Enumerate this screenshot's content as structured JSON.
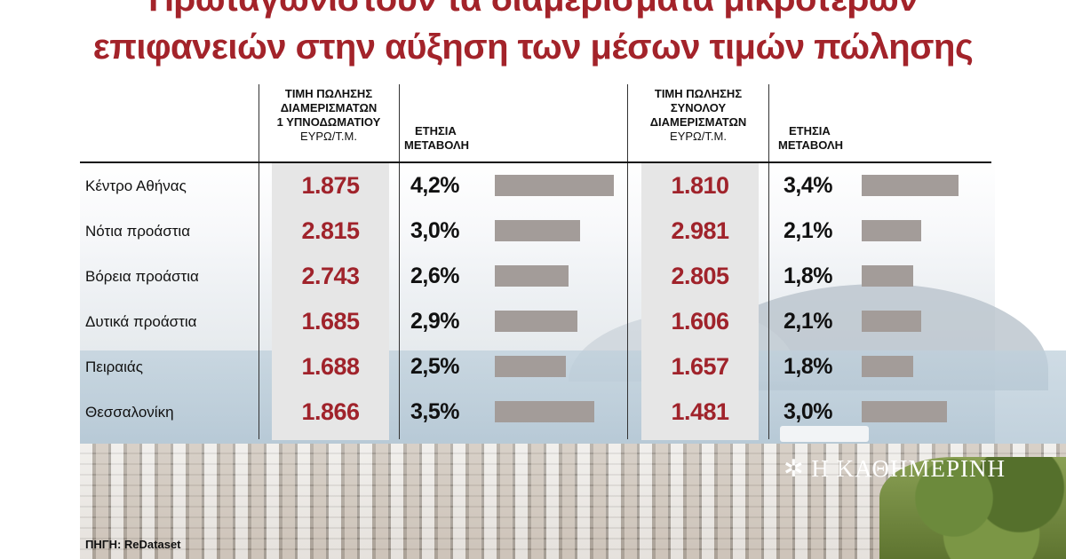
{
  "title": {
    "line1": "Πρωταγωνιστούν τα διαμερίσματα μικρότερων",
    "line2": "επιφανειών στην αύξηση των μέσων τιμών πώλησης"
  },
  "headers": {
    "col1": [
      "ΤΙΜΗ ΠΩΛΗΣΗΣ",
      "ΔΙΑΜΕΡΙΣΜΑΤΩΝ",
      "1 ΥΠΝΟΔΩΜΑΤΙΟΥ"
    ],
    "col1_unit": "ΕΥΡΩ/Τ.Μ.",
    "col2": [
      "ΕΤΗΣΙΑ",
      "ΜΕΤΑΒΟΛΗ"
    ],
    "col3": [
      "ΤΙΜΗ ΠΩΛΗΣΗΣ",
      "ΣΥΝΟΛΟΥ",
      "ΔΙΑΜΕΡΙΣΜΑΤΩΝ"
    ],
    "col3_unit": "ΕΥΡΩ/Τ.Μ.",
    "col4": [
      "ΕΤΗΣΙΑ",
      "ΜΕΤΑΒΟΛΗ"
    ]
  },
  "chart_data": {
    "type": "table",
    "rows": [
      "Κέντρο Αθήνας",
      "Νότια προάστια",
      "Βόρεια προάστια",
      "Δυτικά προάστια",
      "Πειραιάς",
      "Θεσσαλονίκη"
    ],
    "series": [
      {
        "name": "ΤΙΜΗ ΠΩΛΗΣΗΣ ΔΙΑΜΕΡΙΣΜΑΤΩΝ 1 ΥΠΝΟΔΩΜΑΤΙΟΥ",
        "labels": [
          "1.875",
          "2.815",
          "2.743",
          "1.685",
          "1.688",
          "1.866"
        ],
        "values": [
          1875,
          2815,
          2743,
          1685,
          1688,
          1866
        ]
      },
      {
        "name": "ΕΤΗΣΙΑ ΜΕΤΑΒΟΛΗ",
        "labels": [
          "4,2%",
          "3,0%",
          "2,6%",
          "2,9%",
          "2,5%",
          "3,5%"
        ],
        "values": [
          4.2,
          3.0,
          2.6,
          2.9,
          2.5,
          3.5
        ]
      },
      {
        "name": "ΤΙΜΗ ΠΩΛΗΣΗΣ ΣΥΝΟΛΟΥ ΔΙΑΜΕΡΙΣΜΑΤΩΝ",
        "labels": [
          "1.810",
          "2.981",
          "2.805",
          "1.606",
          "1.657",
          "1.481"
        ],
        "values": [
          1810,
          2981,
          2805,
          1606,
          1657,
          1481
        ]
      },
      {
        "name": "ΕΤΗΣΙΑ ΜΕΤΑΒΟΛΗ",
        "labels": [
          "3,4%",
          "2,1%",
          "1,8%",
          "2,1%",
          "1,8%",
          "3,0%"
        ],
        "values": [
          3.4,
          2.1,
          1.8,
          2.1,
          1.8,
          3.0
        ]
      }
    ]
  },
  "source": "ΠΗΓΗ: ReDataset",
  "logo": "Η ΚΑΘΗΜΕΡΙΝΗ",
  "colors": {
    "title": "#a3232a",
    "value": "#a0232b",
    "bar": "#a39c99",
    "shade": "#e6e6e6"
  }
}
